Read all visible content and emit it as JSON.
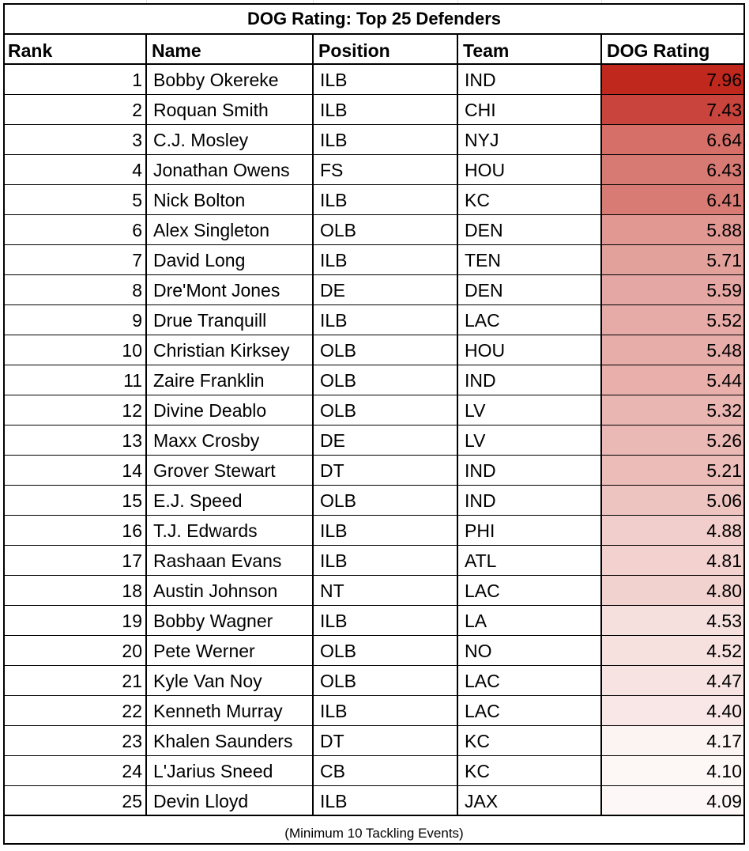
{
  "sheet": {
    "title": "DOG Rating: Top 25 Defenders",
    "footnote": "(Minimum 10 Tackling Events)",
    "headers": {
      "rank": "Rank",
      "name": "Name",
      "position": "Position",
      "team": "Team",
      "rating": "DOG Rating"
    },
    "heat_colors": {
      "high": "#c0281e",
      "low": "#fdf8f7"
    }
  },
  "chart_data": {
    "type": "table",
    "title": "DOG Rating: Top 25 Defenders",
    "columns": [
      "Rank",
      "Name",
      "Position",
      "Team",
      "DOG Rating"
    ],
    "rows": [
      {
        "rank": 1,
        "name": "Bobby Okereke",
        "position": "ILB",
        "team": "IND",
        "rating": "7.96"
      },
      {
        "rank": 2,
        "name": "Roquan Smith",
        "position": "ILB",
        "team": "CHI",
        "rating": "7.43"
      },
      {
        "rank": 3,
        "name": "C.J. Mosley",
        "position": "ILB",
        "team": "NYJ",
        "rating": "6.64"
      },
      {
        "rank": 4,
        "name": "Jonathan Owens",
        "position": "FS",
        "team": "HOU",
        "rating": "6.43"
      },
      {
        "rank": 5,
        "name": "Nick Bolton",
        "position": "ILB",
        "team": "KC",
        "rating": "6.41"
      },
      {
        "rank": 6,
        "name": "Alex Singleton",
        "position": "OLB",
        "team": "DEN",
        "rating": "5.88"
      },
      {
        "rank": 7,
        "name": "David Long",
        "position": "ILB",
        "team": "TEN",
        "rating": "5.71"
      },
      {
        "rank": 8,
        "name": "Dre'Mont Jones",
        "position": "DE",
        "team": "DEN",
        "rating": "5.59"
      },
      {
        "rank": 9,
        "name": "Drue Tranquill",
        "position": "ILB",
        "team": "LAC",
        "rating": "5.52"
      },
      {
        "rank": 10,
        "name": "Christian Kirksey",
        "position": "OLB",
        "team": "HOU",
        "rating": "5.48"
      },
      {
        "rank": 11,
        "name": "Zaire Franklin",
        "position": "OLB",
        "team": "IND",
        "rating": "5.44"
      },
      {
        "rank": 12,
        "name": "Divine Deablo",
        "position": "OLB",
        "team": "LV",
        "rating": "5.32"
      },
      {
        "rank": 13,
        "name": "Maxx Crosby",
        "position": "DE",
        "team": "LV",
        "rating": "5.26"
      },
      {
        "rank": 14,
        "name": "Grover Stewart",
        "position": "DT",
        "team": "IND",
        "rating": "5.21"
      },
      {
        "rank": 15,
        "name": "E.J. Speed",
        "position": "OLB",
        "team": "IND",
        "rating": "5.06"
      },
      {
        "rank": 16,
        "name": "T.J. Edwards",
        "position": "ILB",
        "team": "PHI",
        "rating": "4.88"
      },
      {
        "rank": 17,
        "name": "Rashaan Evans",
        "position": "ILB",
        "team": "ATL",
        "rating": "4.81"
      },
      {
        "rank": 18,
        "name": "Austin Johnson",
        "position": "NT",
        "team": "LAC",
        "rating": "4.80"
      },
      {
        "rank": 19,
        "name": "Bobby Wagner",
        "position": "ILB",
        "team": "LA",
        "rating": "4.53"
      },
      {
        "rank": 20,
        "name": "Pete Werner",
        "position": "OLB",
        "team": "NO",
        "rating": "4.52"
      },
      {
        "rank": 21,
        "name": "Kyle Van Noy",
        "position": "OLB",
        "team": "LAC",
        "rating": "4.47"
      },
      {
        "rank": 22,
        "name": "Kenneth Murray",
        "position": "ILB",
        "team": "LAC",
        "rating": "4.40"
      },
      {
        "rank": 23,
        "name": "Khalen Saunders",
        "position": "DT",
        "team": "KC",
        "rating": "4.17"
      },
      {
        "rank": 24,
        "name": "L'Jarius Sneed",
        "position": "CB",
        "team": "KC",
        "rating": "4.10"
      },
      {
        "rank": 25,
        "name": "Devin Lloyd",
        "position": "ILB",
        "team": "JAX",
        "rating": "4.09"
      }
    ]
  }
}
